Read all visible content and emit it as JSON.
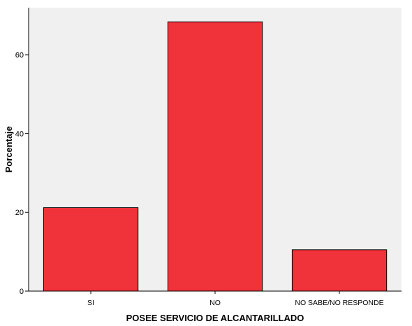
{
  "chart_data": {
    "type": "bar",
    "title": "",
    "xlabel": "POSEE SERVICIO DE ALCANTARILLADO",
    "ylabel": "Porcentaje",
    "categories": [
      "SI",
      "NO",
      "NO SABE/NO RESPONDE"
    ],
    "values": [
      21.2,
      68.4,
      10.5
    ],
    "ylim": [
      0,
      72
    ],
    "yticks": [
      0,
      20,
      40,
      60
    ],
    "grid": false,
    "legend": "none"
  },
  "colors": {
    "plot_background": "#f0f0f0",
    "bar_fill": "#f0323a",
    "bar_stroke": "#000000",
    "axis": "#000000"
  }
}
